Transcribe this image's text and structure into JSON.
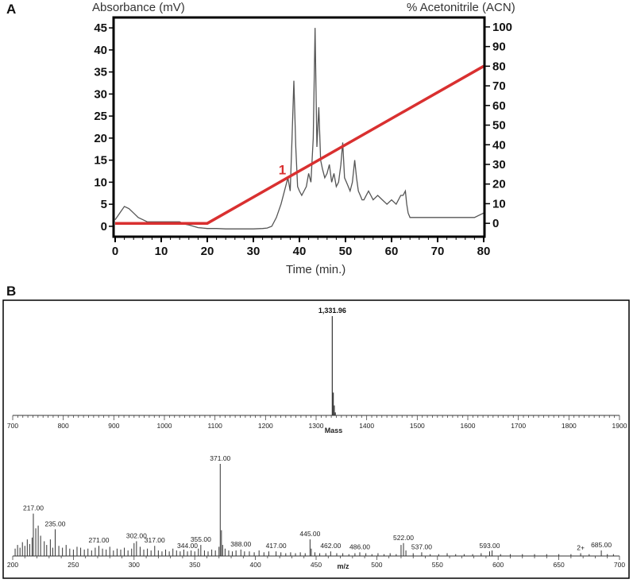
{
  "panelA": {
    "letter": "A",
    "y_left_label": "Absorbance (mV)",
    "y_right_label": "% Acetonitrile (ACN)",
    "x_label": "Time (min.)",
    "peak_marker": "1",
    "colors": {
      "trace": "#555555",
      "gradient": "#d93030",
      "marker": "#d93030",
      "frame": "#000000"
    }
  },
  "panelB": {
    "letter": "B",
    "mass_label": "Mass",
    "mz_label": "m/z",
    "charge_label": "2+",
    "colors": {
      "spectrum": "#333333",
      "charge": "#cc2020"
    }
  },
  "chart_data": [
    {
      "type": "line",
      "x_label": "Time (min.)",
      "xlim": [
        0,
        80
      ],
      "x_ticks": [
        0,
        10,
        20,
        30,
        40,
        50,
        60,
        70,
        80
      ],
      "y_left": {
        "label": "Absorbance (mV)",
        "lim": [
          -2,
          47
        ],
        "ticks": [
          0,
          5,
          10,
          15,
          20,
          25,
          30,
          35,
          40,
          45
        ]
      },
      "y_right": {
        "label": "% Acetonitrile (ACN)",
        "lim": [
          -6,
          104
        ],
        "ticks": [
          0,
          10,
          20,
          30,
          40,
          50,
          60,
          70,
          80,
          90,
          100
        ]
      },
      "series": [
        {
          "axis": "left",
          "x": [
            0,
            1,
            2,
            3,
            4,
            5,
            6,
            7,
            8,
            9,
            10,
            11,
            12,
            13,
            14,
            15,
            16,
            17,
            18,
            19,
            20,
            22,
            24,
            26,
            28,
            30,
            32,
            33,
            34,
            35,
            36,
            37,
            37.5,
            38,
            38.4,
            38.8,
            39.2,
            39.6,
            40,
            40.5,
            41,
            41.5,
            42,
            42.5,
            43,
            43.4,
            43.8,
            44.2,
            44.6,
            45,
            45.5,
            46,
            46.5,
            47,
            47.5,
            48,
            48.5,
            49,
            49.4,
            49.8,
            50.2,
            50.6,
            51,
            51.5,
            52,
            52.4,
            52.8,
            53.2,
            53.6,
            54,
            55,
            56,
            57,
            58,
            59,
            60,
            61,
            62,
            62.5,
            63,
            63.3,
            63.6,
            64,
            65,
            66,
            68,
            70,
            72,
            74,
            76,
            78,
            80
          ],
          "y": [
            1.5,
            3,
            4.5,
            4,
            3,
            2,
            1.5,
            1,
            1,
            1,
            1,
            1,
            1,
            1,
            1,
            0.5,
            0.3,
            0,
            -0.3,
            -0.4,
            -0.5,
            -0.5,
            -0.6,
            -0.6,
            -0.6,
            -0.6,
            -0.5,
            -0.4,
            0,
            2,
            5,
            9,
            11,
            8,
            20,
            33,
            18,
            9,
            8,
            7,
            8,
            9,
            12,
            10,
            20,
            45,
            18,
            27,
            15,
            13,
            11,
            12,
            14,
            10,
            12,
            9,
            10,
            14,
            19,
            11,
            10,
            9,
            8,
            10,
            15,
            11,
            8,
            7,
            6,
            6,
            8,
            6,
            7,
            6,
            5,
            6,
            5,
            7,
            7,
            8,
            5,
            3,
            2,
            2,
            2,
            2,
            2,
            2,
            2,
            2,
            2,
            3
          ]
        },
        {
          "axis": "right",
          "x": [
            0,
            20,
            80
          ],
          "y": [
            0,
            0,
            80
          ]
        }
      ],
      "annotations": [
        {
          "text": "1",
          "x": 36.5,
          "y": 13
        }
      ]
    },
    {
      "type": "bar",
      "x_label": "Mass",
      "xlim": [
        700,
        1900
      ],
      "x_ticks": [
        700,
        800,
        900,
        1000,
        1100,
        1200,
        1300,
        1400,
        1500,
        1600,
        1700,
        1800,
        1900
      ],
      "x": [
        1331.96,
        1334,
        1336,
        1338
      ],
      "values": [
        100,
        23,
        10,
        3
      ],
      "annotations": [
        {
          "text": "1,331.96",
          "x": 1331.96
        }
      ]
    },
    {
      "type": "bar",
      "x_label": "m/z",
      "xlim": [
        200,
        700
      ],
      "x_ticks": [
        200,
        250,
        300,
        350,
        400,
        450,
        500,
        550,
        600,
        650,
        700
      ],
      "x": [
        202,
        204,
        206,
        208,
        210,
        212,
        214,
        216,
        217,
        219,
        221,
        223,
        226,
        228,
        231,
        233,
        235,
        238,
        241,
        244,
        247,
        250,
        253,
        256,
        259,
        262,
        265,
        268,
        271,
        274,
        277,
        280,
        283,
        286,
        289,
        292,
        295,
        298,
        300,
        302,
        305,
        308,
        311,
        314,
        317,
        320,
        323,
        326,
        329,
        332,
        335,
        338,
        341,
        344,
        347,
        350,
        353,
        355,
        358,
        361,
        364,
        367,
        370,
        371,
        372,
        373,
        375,
        378,
        381,
        384,
        388,
        391,
        395,
        399,
        403,
        407,
        411,
        417,
        421,
        425,
        429,
        433,
        437,
        441,
        445,
        446,
        449,
        453,
        458,
        462,
        467,
        472,
        477,
        482,
        486,
        491,
        496,
        501,
        506,
        511,
        516,
        520,
        522,
        524,
        530,
        537,
        544,
        551,
        558,
        565,
        572,
        579,
        586,
        593,
        595,
        602,
        610,
        620,
        630,
        640,
        650,
        660,
        668,
        675,
        685,
        690,
        695
      ],
      "values": [
        8,
        12,
        9,
        15,
        11,
        18,
        13,
        20,
        46,
        30,
        33,
        22,
        16,
        12,
        18,
        9,
        29,
        11,
        9,
        12,
        8,
        7,
        10,
        9,
        7,
        8,
        6,
        9,
        11,
        8,
        7,
        10,
        6,
        8,
        7,
        9,
        6,
        8,
        14,
        16,
        10,
        7,
        8,
        6,
        11,
        6,
        5,
        7,
        5,
        8,
        6,
        5,
        7,
        5,
        6,
        5,
        8,
        12,
        6,
        5,
        7,
        6,
        10,
        100,
        28,
        12,
        8,
        6,
        5,
        6,
        7,
        5,
        5,
        4,
        6,
        4,
        5,
        5,
        4,
        3,
        4,
        3,
        4,
        3,
        18,
        8,
        4,
        3,
        3,
        5,
        3,
        3,
        2,
        3,
        4,
        3,
        2,
        3,
        2,
        3,
        2,
        12,
        14,
        6,
        3,
        4,
        2,
        2,
        3,
        2,
        2,
        2,
        3,
        5,
        6,
        2,
        2,
        2,
        2,
        2,
        2,
        2,
        3,
        2,
        6,
        2,
        2
      ],
      "annotations": [
        {
          "text": "217.00",
          "x": 217
        },
        {
          "text": "235.00",
          "x": 235
        },
        {
          "text": "271.00",
          "x": 271
        },
        {
          "text": "302.00",
          "x": 302
        },
        {
          "text": "317.00",
          "x": 317
        },
        {
          "text": "344.00",
          "x": 344
        },
        {
          "text": "355.00",
          "x": 355
        },
        {
          "text": "371.00",
          "x": 371
        },
        {
          "text": "388.00",
          "x": 388
        },
        {
          "text": "417.00",
          "x": 417
        },
        {
          "text": "445.00",
          "x": 445
        },
        {
          "text": "462.00",
          "x": 462
        },
        {
          "text": "486.00",
          "x": 486
        },
        {
          "text": "522.00",
          "x": 522
        },
        {
          "text": "537.00",
          "x": 537
        },
        {
          "text": "593.00",
          "x": 593
        },
        {
          "text": "2+",
          "x": 668
        },
        {
          "text": "685.00",
          "x": 685
        }
      ]
    }
  ]
}
